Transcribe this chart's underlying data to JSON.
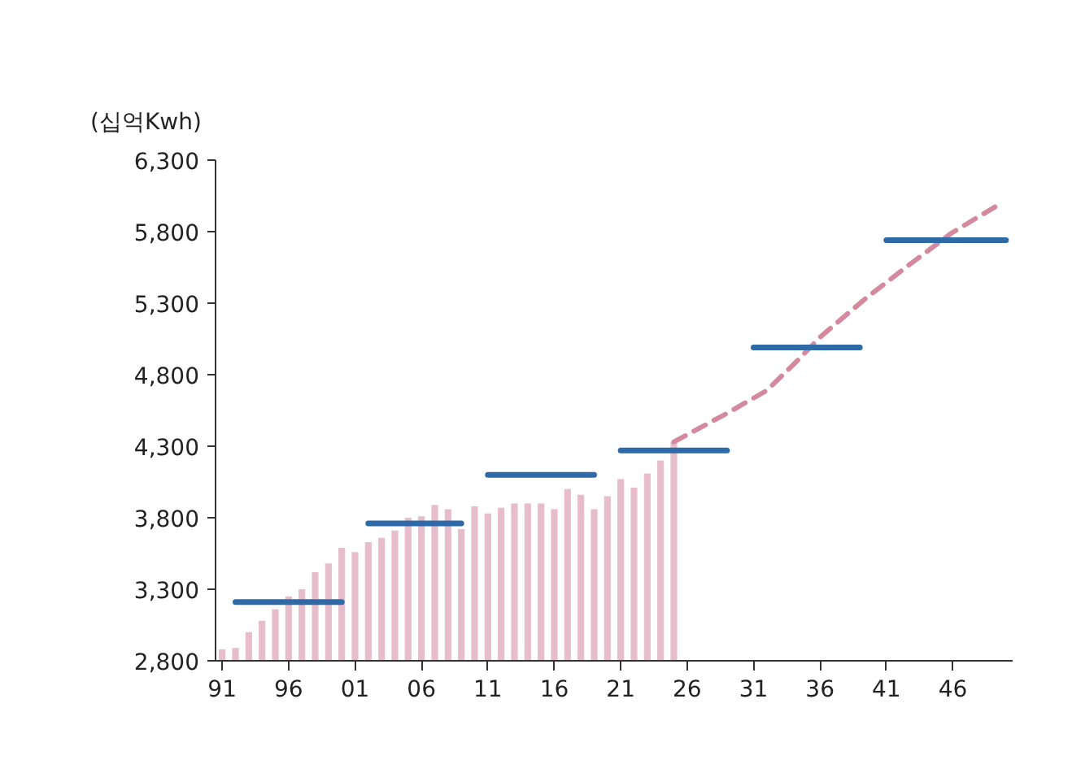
{
  "chart_data": {
    "type": "bar",
    "ylabel": "(십억Kwh)",
    "x": [
      1991,
      1992,
      1993,
      1994,
      1995,
      1996,
      1997,
      1998,
      1999,
      2000,
      2001,
      2002,
      2003,
      2004,
      2005,
      2006,
      2007,
      2008,
      2009,
      2010,
      2011,
      2012,
      2013,
      2014,
      2015,
      2016,
      2017,
      2018,
      2019,
      2020,
      2021,
      2022,
      2023,
      2024,
      2025
    ],
    "series": [
      {
        "color": "#e8bdcb",
        "values": [
          2880,
          2890,
          3000,
          3080,
          3160,
          3250,
          3300,
          3420,
          3480,
          3590,
          3560,
          3630,
          3660,
          3710,
          3800,
          3810,
          3890,
          3860,
          3720,
          3880,
          3830,
          3870,
          3900,
          3900,
          3900,
          3860,
          4000,
          3960,
          3860,
          3950,
          4070,
          4010,
          4110,
          4200,
          4330
        ]
      },
      {
        "type": "line",
        "color": "#d4899f",
        "line_style": "dashed",
        "x": [
          2025,
          2026,
          2029.2,
          2032,
          2034.1,
          2036.1,
          2039.4,
          2042.6,
          2045.9,
          2049.3,
          2049.6
        ],
        "values": [
          4330,
          4380,
          4540,
          4690,
          4880,
          5070,
          5330,
          5560,
          5790,
          5980,
          6000
        ]
      },
      {
        "type": "line",
        "color": "#2e6aa8",
        "line_style": "solid",
        "x": [
          1992,
          2000
        ],
        "values": [
          3210,
          3210
        ]
      },
      {
        "type": "line",
        "color": "#2e6aa8",
        "line_style": "solid",
        "x": [
          2002,
          2009
        ],
        "values": [
          3760,
          3760
        ]
      },
      {
        "type": "line",
        "color": "#2e6aa8",
        "line_style": "solid",
        "x": [
          2011,
          2019
        ],
        "values": [
          4100,
          4100
        ]
      },
      {
        "type": "line",
        "color": "#2e6aa8",
        "line_style": "solid",
        "x": [
          2021,
          2029
        ],
        "values": [
          4270,
          4270
        ]
      },
      {
        "type": "line",
        "color": "#2e6aa8",
        "line_style": "solid",
        "x": [
          2031,
          2039
        ],
        "values": [
          4990,
          4990
        ]
      },
      {
        "type": "line",
        "color": "#2e6aa8",
        "line_style": "solid",
        "x": [
          2041,
          2050
        ],
        "values": [
          5740,
          5740
        ]
      }
    ],
    "xlim": [
      1990.5,
      2050.5
    ],
    "xticks": [
      {
        "value": 1991,
        "label": "91"
      },
      {
        "value": 1996,
        "label": "96"
      },
      {
        "value": 2001,
        "label": "01"
      },
      {
        "value": 2006,
        "label": "06"
      },
      {
        "value": 2011,
        "label": "11"
      },
      {
        "value": 2016,
        "label": "16"
      },
      {
        "value": 2021,
        "label": "21"
      },
      {
        "value": 2026,
        "label": "26"
      },
      {
        "value": 2031,
        "label": "31"
      },
      {
        "value": 2036,
        "label": "36"
      },
      {
        "value": 2041,
        "label": "41"
      },
      {
        "value": 2046,
        "label": "46"
      }
    ],
    "ylim": [
      2800,
      6300
    ],
    "yticks": [
      {
        "value": 2800,
        "label": "2,800"
      },
      {
        "value": 3300,
        "label": "3,300"
      },
      {
        "value": 3800,
        "label": "3,800"
      },
      {
        "value": 4300,
        "label": "4,300"
      },
      {
        "value": 4800,
        "label": "4,800"
      },
      {
        "value": 5300,
        "label": "5,300"
      },
      {
        "value": 5800,
        "label": "5,800"
      },
      {
        "value": 6300,
        "label": "6,300"
      }
    ],
    "grid": false
  }
}
